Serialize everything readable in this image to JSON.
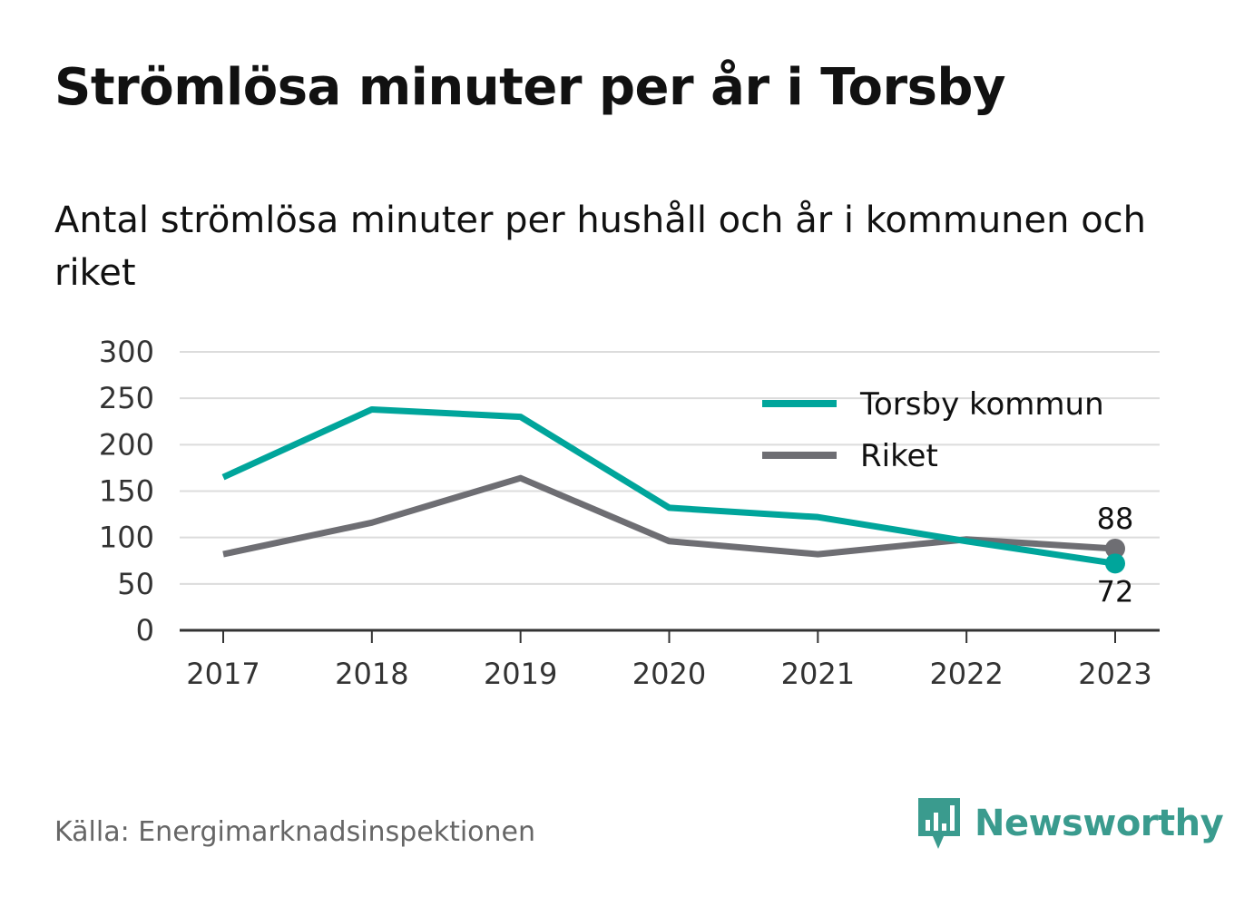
{
  "title": "Strömlösa minuter per år i Torsby",
  "subtitle": "Antal strömlösa minuter per hushåll och år i kommunen och riket",
  "source": "Källa: Energimarknadsinspektionen",
  "brand": {
    "name": "Newsworthy",
    "icon": "newsworthy-logo-icon",
    "color": "#3a9b8e"
  },
  "chart_data": {
    "type": "line",
    "x": [
      "2017",
      "2018",
      "2019",
      "2020",
      "2021",
      "2022",
      "2023"
    ],
    "yticks": [
      "0",
      "50",
      "100",
      "150",
      "200",
      "250",
      "300"
    ],
    "ylim": [
      0,
      300
    ],
    "grid": true,
    "legend_position": "top-right",
    "series": [
      {
        "name": "Torsby kommun",
        "color": "#00a59b",
        "values": [
          165,
          238,
          230,
          132,
          122,
          96,
          72
        ],
        "end_label": "72"
      },
      {
        "name": "Riket",
        "color": "#6e6e73",
        "values": [
          82,
          116,
          164,
          96,
          82,
          98,
          88
        ],
        "end_label": "88"
      }
    ]
  }
}
